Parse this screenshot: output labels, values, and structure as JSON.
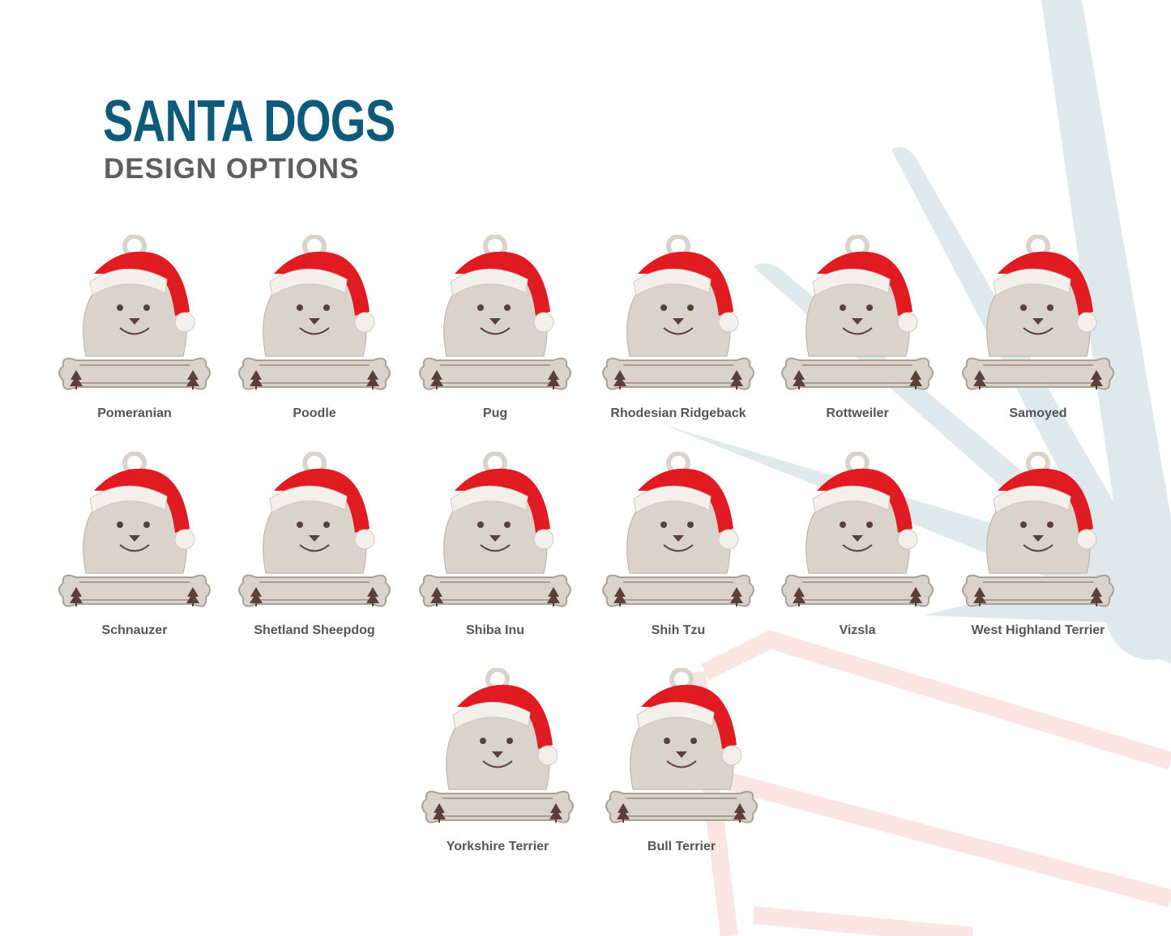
{
  "header": {
    "title": "SANTA DOGS",
    "subtitle": "DESIGN OPTIONS"
  },
  "colors": {
    "title": "#0e5a7a",
    "subtitle": "#5e5e5e",
    "wood": "#d9d3cb",
    "hat_red": "#e11b22",
    "hat_white": "#f3f0ec",
    "engrave": "#5a4038",
    "bg_blue": "#dfe9ec",
    "bg_pink": "#fbe5e3"
  },
  "designs": [
    {
      "name": "Pomeranian"
    },
    {
      "name": "Poodle"
    },
    {
      "name": "Pug"
    },
    {
      "name": "Rhodesian Ridgeback"
    },
    {
      "name": "Rottweiler"
    },
    {
      "name": "Samoyed"
    },
    {
      "name": "Schnauzer"
    },
    {
      "name": "Shetland Sheepdog"
    },
    {
      "name": "Shiba Inu"
    },
    {
      "name": "Shih Tzu"
    },
    {
      "name": "Vizsla"
    },
    {
      "name": "West Highland Terrier"
    },
    {
      "name": "Yorkshire Terrier"
    },
    {
      "name": "Bull Terrier"
    }
  ]
}
